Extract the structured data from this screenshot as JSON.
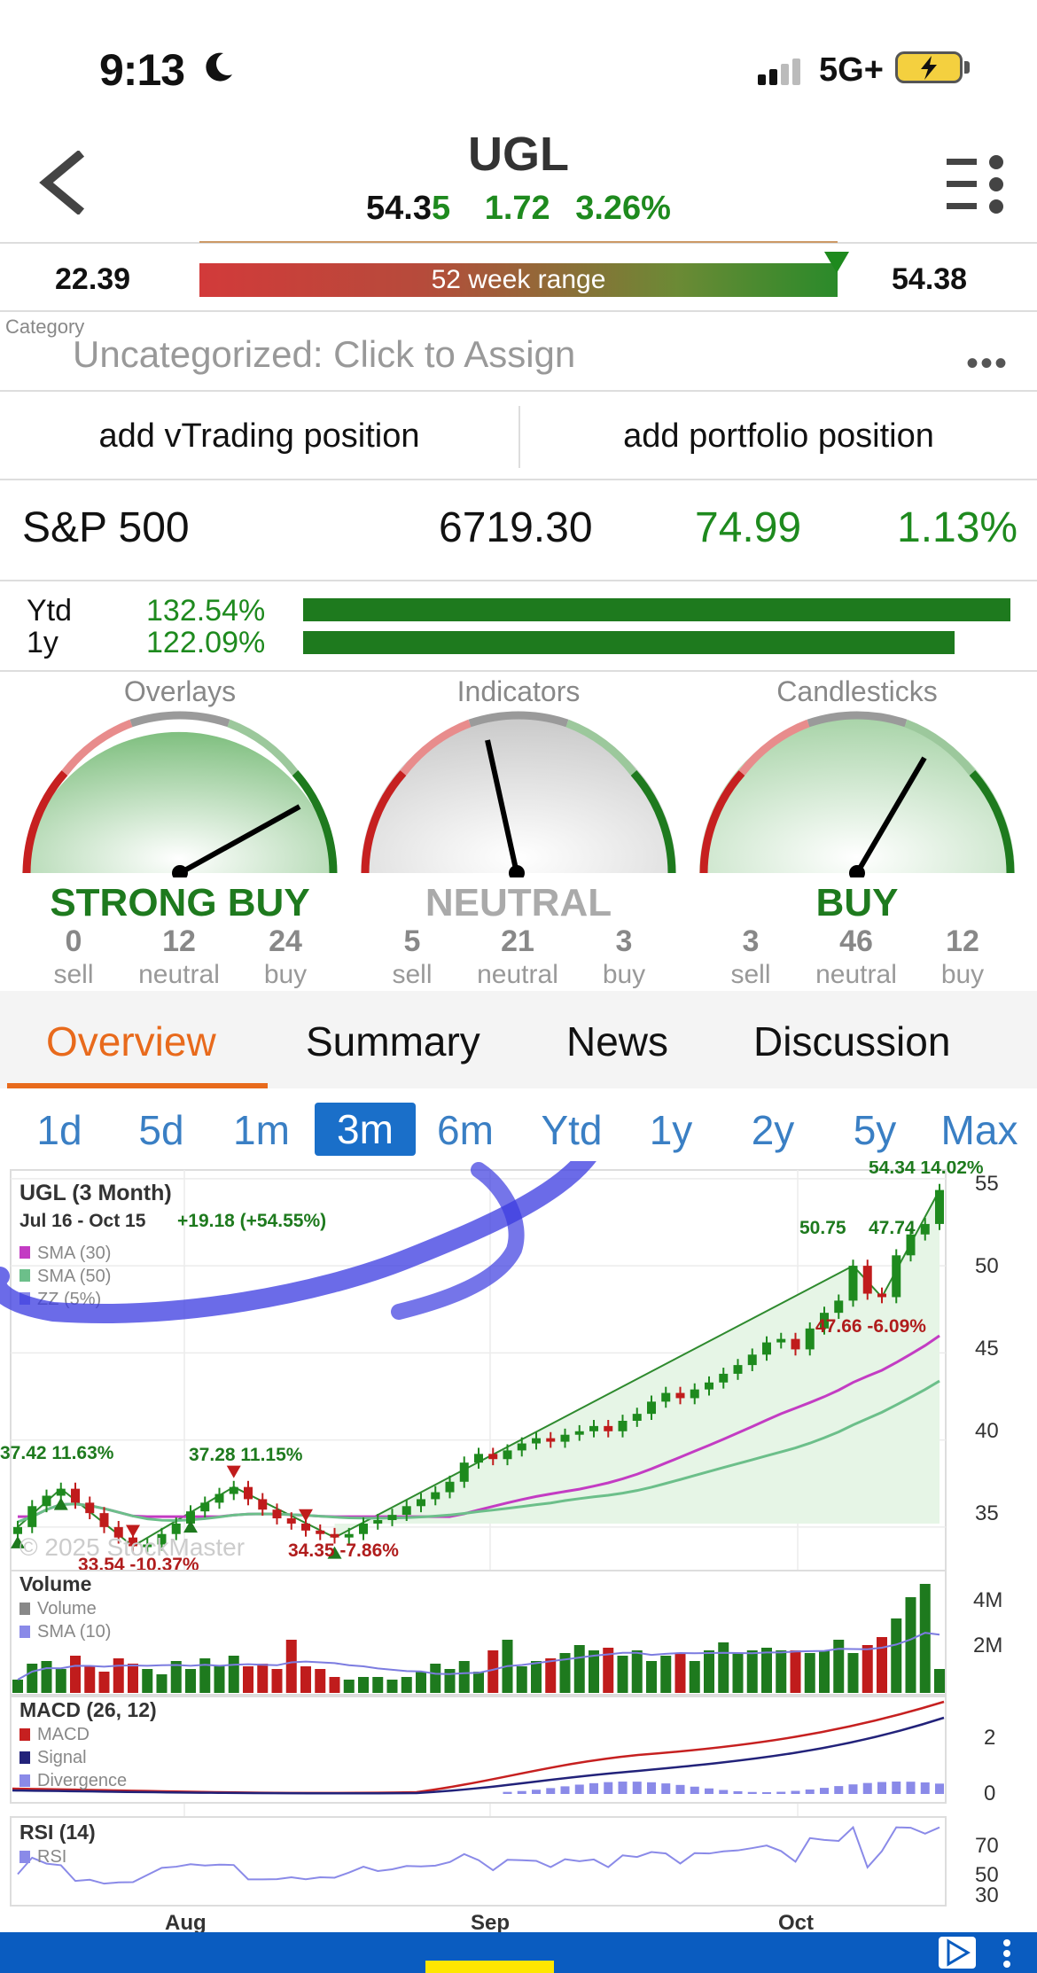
{
  "status_bar": {
    "time": "9:13",
    "network": "5G+"
  },
  "header": {
    "ticker": "UGL",
    "price_main": "54.3",
    "price_last_digit": "5",
    "change": "1.72",
    "change_pct": "3.26%"
  },
  "week_range": {
    "low": "22.39",
    "label": "52 week range",
    "high": "54.38",
    "position": 0.98
  },
  "category": {
    "label": "Category",
    "value": "Uncategorized: Click to Assign",
    "more": "•••"
  },
  "actions": {
    "vtrading": "add vTrading position",
    "portfolio": "add portfolio position"
  },
  "index": {
    "name": "S&P 500",
    "price": "6719.30",
    "change": "74.99",
    "change_pct": "1.13%"
  },
  "performance": [
    {
      "label": "Ytd",
      "value": "132.54%",
      "fraction": 1.0
    },
    {
      "label": "1y",
      "value": "122.09%",
      "fraction": 0.921
    }
  ],
  "gauges": [
    {
      "title": "Overlays",
      "rating": "STRONG BUY",
      "rating_color": "#1e7a1e",
      "counts": [
        {
          "n": "0",
          "label": "sell"
        },
        {
          "n": "12",
          "label": "neutral"
        },
        {
          "n": "24",
          "label": "buy"
        }
      ]
    },
    {
      "title": "Indicators",
      "rating": "NEUTRAL",
      "rating_color": "#aaaaaa",
      "counts": [
        {
          "n": "5",
          "label": "sell"
        },
        {
          "n": "21",
          "label": "neutral"
        },
        {
          "n": "3",
          "label": "buy"
        }
      ]
    },
    {
      "title": "Candlesticks",
      "rating": "BUY",
      "rating_color": "#1e7a1e",
      "counts": [
        {
          "n": "3",
          "label": "sell"
        },
        {
          "n": "46",
          "label": "neutral"
        },
        {
          "n": "12",
          "label": "buy"
        }
      ]
    }
  ],
  "tabs": [
    "Overview",
    "Summary",
    "News",
    "Discussion"
  ],
  "active_tab": "Overview",
  "ranges": [
    "1d",
    "5d",
    "1m",
    "3m",
    "6m",
    "Ytd",
    "1y",
    "2y",
    "5y",
    "Max"
  ],
  "active_range": "3m",
  "chart_data": {
    "type": "candlestick",
    "title": "UGL (3 Month)",
    "date_range": "Jul 16 - Oct 15",
    "period_change": "+19.18 (+54.55%)",
    "legend": [
      "SMA (30)",
      "SMA (50)",
      "ZZ (5%)"
    ],
    "legend_colors": [
      "#c33cc3",
      "#6cbf8a",
      "#8a8ae8"
    ],
    "watermark": "© 2025 StockMaster",
    "annotations": [
      {
        "text": "37.42  11.63%",
        "color": "#1e7a1e"
      },
      {
        "text": "37.28  11.15%",
        "color": "#1e7a1e"
      },
      {
        "text": "33.54  -10.37%",
        "color": "#b01c1c"
      },
      {
        "text": "34.35  -7.86%",
        "color": "#b01c1c"
      },
      {
        "text": "50.75",
        "color": "#1e7a1e"
      },
      {
        "text": "47.74",
        "color": "#1e7a1e"
      },
      {
        "text": "47.66  -6.09%",
        "color": "#b01c1c"
      },
      {
        "text": "54.34  14.02%",
        "color": "#1e7a1e"
      }
    ],
    "y_ticks": [
      "55",
      "50",
      "45",
      "40",
      "35"
    ],
    "ylim": [
      32.5,
      55.5
    ],
    "x_ticks": [
      "Aug",
      "Sep",
      "Oct"
    ],
    "closes": [
      35.0,
      36.2,
      36.8,
      37.2,
      36.4,
      35.8,
      35.0,
      34.4,
      33.9,
      34.0,
      34.6,
      35.2,
      35.9,
      36.4,
      36.9,
      37.3,
      36.6,
      36.0,
      35.5,
      35.2,
      34.8,
      34.6,
      34.4,
      34.6,
      35.2,
      35.4,
      35.7,
      36.2,
      36.6,
      37.0,
      37.6,
      38.7,
      39.2,
      38.9,
      39.4,
      39.8,
      40.1,
      39.9,
      40.3,
      40.5,
      40.8,
      40.5,
      41.1,
      41.5,
      42.2,
      42.7,
      42.4,
      42.9,
      43.3,
      43.8,
      44.3,
      44.9,
      45.6,
      45.8,
      45.2,
      46.4,
      47.3,
      48.0,
      50.0,
      48.4,
      48.2,
      50.6,
      51.8,
      52.4,
      54.35
    ],
    "volume": {
      "label": "Volume",
      "legend": [
        "Volume",
        "SMA (10)"
      ],
      "y_ticks": [
        "4M",
        "2M"
      ],
      "values": [
        0.5,
        1.1,
        1.2,
        0.9,
        1.4,
        1.0,
        0.8,
        1.3,
        1.1,
        0.9,
        0.7,
        1.2,
        0.9,
        1.3,
        1.0,
        1.4,
        1.0,
        1.1,
        0.9,
        2.0,
        1.0,
        0.9,
        0.6,
        0.5,
        0.6,
        0.6,
        0.5,
        0.6,
        0.8,
        1.1,
        0.9,
        1.2,
        0.8,
        1.6,
        2.0,
        1.0,
        1.2,
        1.3,
        1.5,
        1.8,
        1.6,
        1.7,
        1.4,
        1.6,
        1.2,
        1.4,
        1.5,
        1.2,
        1.6,
        1.9,
        1.5,
        1.6,
        1.7,
        1.6,
        1.6,
        1.5,
        1.6,
        2.0,
        1.5,
        1.8,
        2.1,
        2.8,
        3.6,
        4.1,
        0.9
      ]
    },
    "macd": {
      "label": "MACD (26, 12)",
      "legend": [
        "MACD",
        "Signal",
        "Divergence"
      ],
      "y_ticks": [
        "2",
        "0"
      ]
    },
    "rsi": {
      "label": "RSI (14)",
      "legend": [
        "RSI"
      ],
      "y_ticks": [
        "70",
        "50",
        "30"
      ]
    }
  }
}
